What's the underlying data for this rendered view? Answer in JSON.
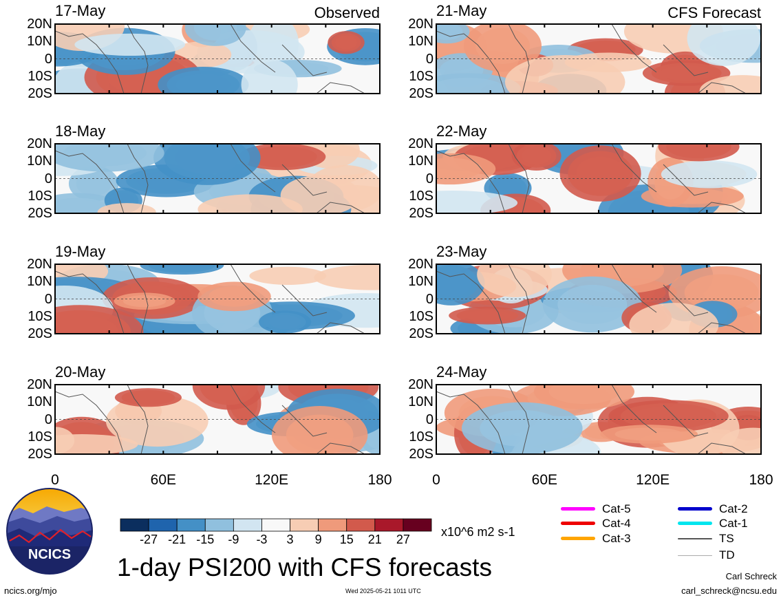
{
  "chart_data": {
    "type": "heatmap",
    "title": "1-day PSI200 with CFS forecasts",
    "units": "x10^6 m2 s-1",
    "columns": [
      {
        "label": "Observed",
        "panels": [
          "17-May",
          "18-May",
          "19-May",
          "20-May"
        ]
      },
      {
        "label": "CFS Forecast",
        "panels": [
          "21-May",
          "22-May",
          "23-May",
          "24-May"
        ]
      }
    ],
    "lat_ticks": [
      "20N",
      "10N",
      "0",
      "10S",
      "20S"
    ],
    "lon_ticks": [
      "0",
      "60E",
      "120E",
      "180"
    ],
    "xlim": [
      0,
      180
    ],
    "ylim": [
      -20,
      20
    ],
    "colorbar": {
      "labels": [
        "-27",
        "-21",
        "-15",
        "-9",
        "-3",
        "3",
        "9",
        "15",
        "21",
        "27"
      ],
      "colors": [
        "#0b2e5e",
        "#1f64ad",
        "#4490c6",
        "#90c0de",
        "#d2e5f1",
        "#f8f8f8",
        "#f7cdb4",
        "#ef9a7b",
        "#d25a4c",
        "#a9182a",
        "#67001f"
      ]
    },
    "legend": [
      {
        "label": "Cat-5",
        "color": "#ff00ff"
      },
      {
        "label": "Cat-4",
        "color": "#ee0000"
      },
      {
        "label": "Cat-3",
        "color": "#ffa500"
      },
      {
        "label": "Cat-2",
        "color": "#0000cc"
      },
      {
        "label": "Cat-1",
        "color": "#00e5ee"
      },
      {
        "label": "TS",
        "color": "#555555"
      },
      {
        "label": "TD",
        "color": "#aaaaaa"
      }
    ]
  },
  "logo_text": "NCICS",
  "footer": {
    "site": "ncics.org/mjo",
    "timestamp": "Wed 2025-05-21 1011 UTC",
    "author": "Carl Schreck",
    "email": "carl_schreck@ncsu.edu"
  }
}
